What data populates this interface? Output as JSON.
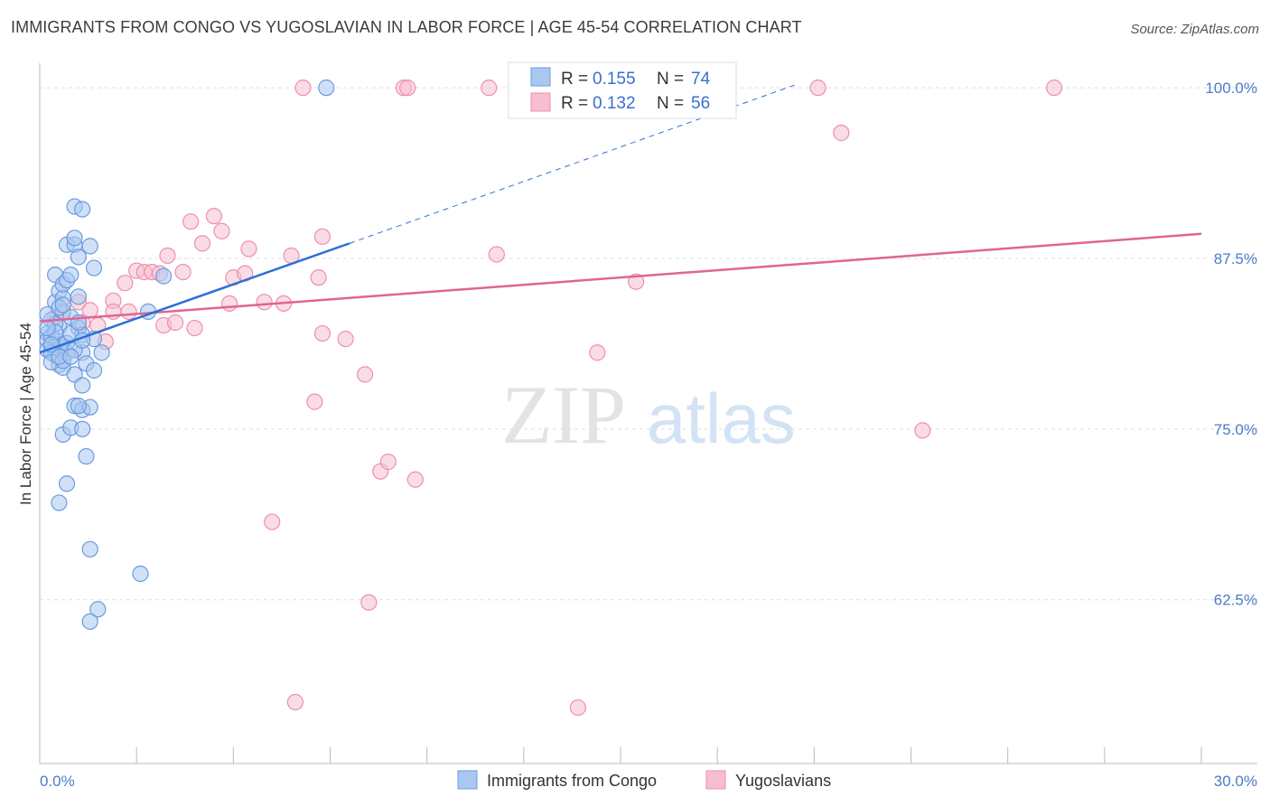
{
  "title": "IMMIGRANTS FROM CONGO VS YUGOSLAVIAN IN LABOR FORCE | AGE 45-54 CORRELATION CHART",
  "source": "Source: ZipAtlas.com",
  "watermark": {
    "zip": "ZIP",
    "atlas": "atlas"
  },
  "colors": {
    "blue_fill": "#a9c8f0",
    "blue_stroke": "#6a9ae0",
    "blue_line": "#2f6fd6",
    "pink_fill": "#f5bfd0",
    "pink_stroke": "#ee8fae",
    "pink_line": "#e06592",
    "grid": "#dddddd",
    "axis": "#bbbbbb"
  },
  "legend": {
    "r_label": "R =",
    "n_label": "N =",
    "series": [
      {
        "r": "0.155",
        "n": "74"
      },
      {
        "r": "0.132",
        "n": "56"
      }
    ]
  },
  "chart_data": {
    "type": "scatter",
    "title": "IMMIGRANTS FROM CONGO VS YUGOSLAVIAN IN LABOR FORCE | AGE 45-54 CORRELATION CHART",
    "xlabel": "",
    "ylabel": "In Labor Force | Age 45-54",
    "xlim": [
      0,
      30
    ],
    "ylim": [
      50.5,
      101.2
    ],
    "x_tick_labels": [
      "0.0%",
      "30.0%"
    ],
    "y_ticks": [
      62.5,
      75.0,
      87.5,
      100.0
    ],
    "y_tick_labels": [
      "62.5%",
      "75.0%",
      "87.5%",
      "100.0%"
    ],
    "grid": true,
    "series": [
      {
        "name": "Immigrants from Congo",
        "trend": {
          "x0": 0.0,
          "y0": 80.6,
          "x1": 8.0,
          "y1": 88.6,
          "dash_x1": 19.5,
          "dash_y1": 100.2
        },
        "points": [
          [
            0.2,
            82.0
          ],
          [
            0.2,
            81.5
          ],
          [
            0.3,
            81.0
          ],
          [
            0.4,
            80.4
          ],
          [
            0.5,
            81.2
          ],
          [
            0.6,
            80.9
          ],
          [
            0.3,
            83.0
          ],
          [
            0.4,
            84.3
          ],
          [
            0.5,
            82.5
          ],
          [
            0.6,
            83.6
          ],
          [
            0.5,
            85.1
          ],
          [
            0.6,
            84.6
          ],
          [
            0.4,
            86.3
          ],
          [
            0.6,
            85.6
          ],
          [
            0.7,
            85.9
          ],
          [
            0.8,
            86.3
          ],
          [
            1.0,
            84.7
          ],
          [
            0.7,
            88.5
          ],
          [
            0.9,
            88.5
          ],
          [
            0.9,
            89.0
          ],
          [
            0.9,
            91.3
          ],
          [
            1.1,
            91.1
          ],
          [
            1.0,
            87.6
          ],
          [
            1.3,
            88.4
          ],
          [
            1.4,
            86.8
          ],
          [
            0.5,
            79.7
          ],
          [
            0.6,
            79.5
          ],
          [
            0.7,
            80.6
          ],
          [
            0.9,
            79.0
          ],
          [
            1.1,
            80.6
          ],
          [
            1.2,
            79.8
          ],
          [
            1.4,
            79.3
          ],
          [
            1.6,
            80.6
          ],
          [
            1.1,
            78.2
          ],
          [
            0.9,
            76.7
          ],
          [
            1.1,
            76.4
          ],
          [
            1.3,
            76.6
          ],
          [
            1.0,
            76.7
          ],
          [
            0.6,
            74.6
          ],
          [
            0.8,
            75.1
          ],
          [
            1.1,
            75.0
          ],
          [
            1.2,
            73.0
          ],
          [
            0.7,
            71.0
          ],
          [
            0.5,
            69.6
          ],
          [
            1.3,
            66.2
          ],
          [
            2.6,
            64.4
          ],
          [
            1.5,
            61.8
          ],
          [
            1.3,
            60.9
          ],
          [
            3.2,
            86.2
          ],
          [
            2.8,
            83.6
          ],
          [
            7.4,
            100.0
          ],
          [
            0.3,
            81.8
          ],
          [
            0.4,
            82.7
          ],
          [
            0.8,
            83.2
          ],
          [
            1.0,
            82.4
          ],
          [
            1.1,
            81.9
          ],
          [
            1.4,
            81.6
          ],
          [
            0.2,
            80.8
          ],
          [
            0.3,
            80.6
          ],
          [
            0.7,
            81.3
          ],
          [
            0.8,
            82.0
          ],
          [
            0.2,
            83.4
          ],
          [
            0.5,
            83.9
          ],
          [
            0.6,
            84.1
          ],
          [
            0.9,
            80.8
          ],
          [
            0.4,
            82.1
          ],
          [
            0.3,
            79.9
          ],
          [
            0.6,
            80.0
          ],
          [
            1.1,
            81.5
          ],
          [
            0.3,
            81.2
          ],
          [
            0.5,
            80.3
          ],
          [
            1.0,
            82.8
          ],
          [
            0.8,
            80.3
          ],
          [
            0.2,
            82.4
          ]
        ]
      },
      {
        "name": "Yugoslavians",
        "trend": {
          "x0": 0.0,
          "y0": 82.9,
          "x1": 30.0,
          "y1": 89.3
        },
        "points": [
          [
            0.4,
            83.2
          ],
          [
            0.6,
            83.5
          ],
          [
            1.0,
            84.3
          ],
          [
            1.1,
            82.8
          ],
          [
            1.3,
            83.7
          ],
          [
            1.7,
            81.4
          ],
          [
            1.9,
            84.4
          ],
          [
            1.9,
            83.6
          ],
          [
            2.2,
            85.7
          ],
          [
            2.3,
            83.6
          ],
          [
            2.5,
            86.6
          ],
          [
            2.7,
            86.5
          ],
          [
            3.2,
            82.6
          ],
          [
            3.3,
            87.7
          ],
          [
            3.5,
            82.8
          ],
          [
            3.7,
            86.5
          ],
          [
            3.9,
            90.2
          ],
          [
            4.0,
            82.4
          ],
          [
            4.2,
            88.6
          ],
          [
            4.5,
            90.6
          ],
          [
            4.7,
            89.5
          ],
          [
            4.9,
            84.2
          ],
          [
            5.0,
            86.1
          ],
          [
            5.3,
            86.4
          ],
          [
            5.4,
            88.2
          ],
          [
            5.8,
            84.3
          ],
          [
            6.3,
            84.2
          ],
          [
            6.5,
            87.7
          ],
          [
            6.6,
            55.0
          ],
          [
            6.8,
            100.0
          ],
          [
            7.2,
            86.1
          ],
          [
            7.3,
            89.1
          ],
          [
            7.3,
            82.0
          ],
          [
            7.1,
            77.0
          ],
          [
            7.9,
            81.6
          ],
          [
            8.4,
            79.0
          ],
          [
            8.5,
            62.3
          ],
          [
            8.8,
            71.9
          ],
          [
            9.0,
            72.6
          ],
          [
            9.4,
            100.0
          ],
          [
            9.5,
            100.0
          ],
          [
            9.7,
            71.3
          ],
          [
            11.6,
            100.0
          ],
          [
            11.8,
            87.8
          ],
          [
            12.8,
            100.0
          ],
          [
            13.9,
            54.6
          ],
          [
            14.4,
            80.6
          ],
          [
            15.4,
            85.8
          ],
          [
            20.1,
            100.0
          ],
          [
            20.7,
            96.7
          ],
          [
            22.8,
            74.9
          ],
          [
            26.2,
            100.0
          ],
          [
            6.0,
            68.2
          ],
          [
            2.9,
            86.5
          ],
          [
            3.1,
            86.4
          ],
          [
            1.5,
            82.6
          ]
        ]
      }
    ],
    "bottom_legend": [
      "Immigrants from Congo",
      "Yugoslavians"
    ]
  }
}
